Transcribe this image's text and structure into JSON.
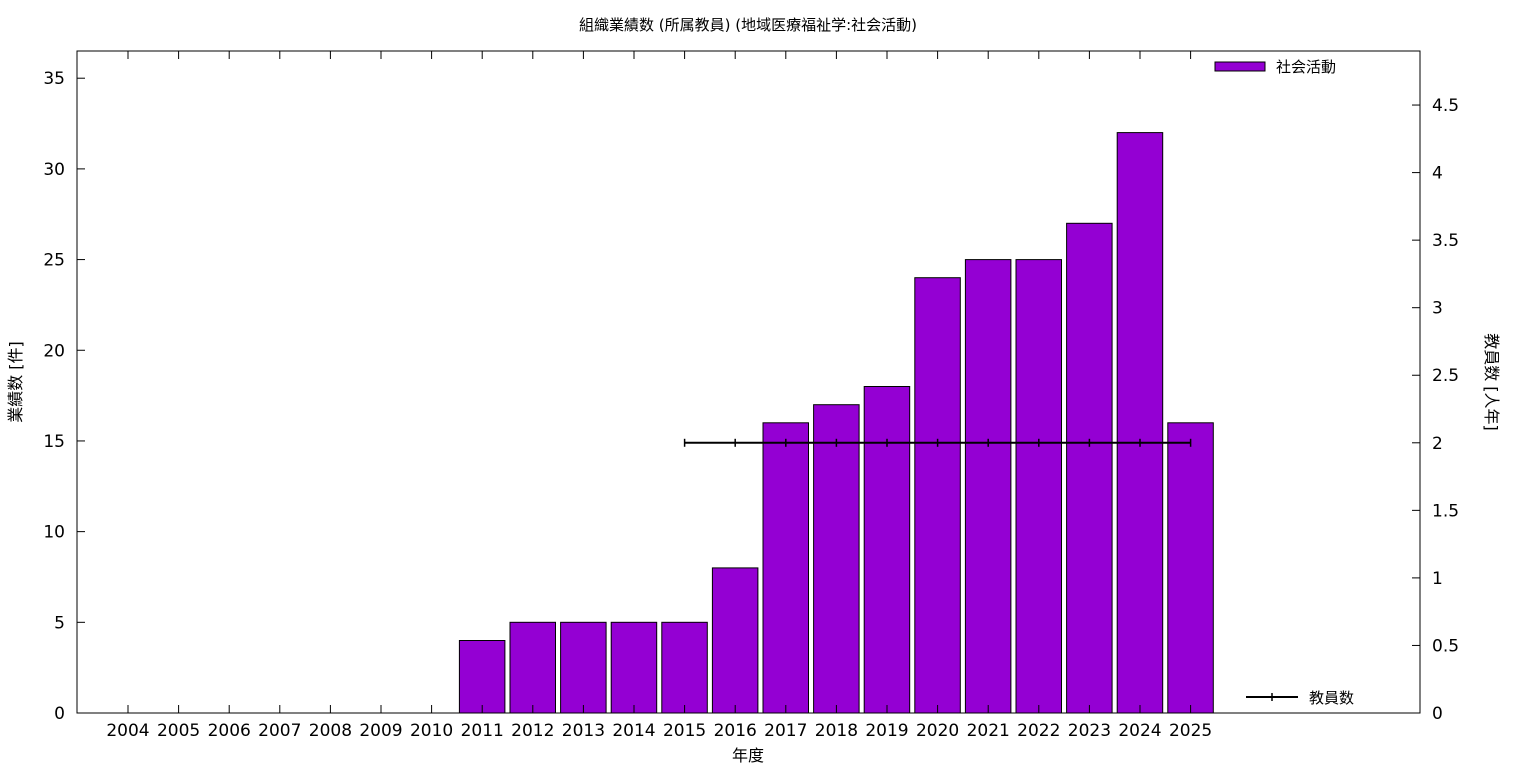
{
  "chart_data": {
    "type": "bar",
    "title": "組織業績数 (所属教員) (地域医療福祉学:社会活動)",
    "xlabel": "年度",
    "ylabel": "業績数 [件]",
    "y2label": "教員数 [人年]",
    "categories": [
      "2004",
      "2005",
      "2006",
      "2007",
      "2008",
      "2009",
      "2010",
      "2011",
      "2012",
      "2013",
      "2014",
      "2015",
      "2016",
      "2017",
      "2018",
      "2019",
      "2020",
      "2021",
      "2022",
      "2023",
      "2024",
      "2025"
    ],
    "series": [
      {
        "name": "社会活動",
        "type": "bar",
        "axis": "left",
        "color": "#9400d3",
        "values": [
          0,
          0,
          0,
          0,
          0,
          0,
          0,
          4,
          5,
          5,
          5,
          5,
          8,
          16,
          17,
          18,
          24,
          25,
          25,
          27,
          32,
          16
        ]
      },
      {
        "name": "教員数",
        "type": "line",
        "axis": "right",
        "color": "#000000",
        "values": [
          null,
          null,
          null,
          null,
          null,
          null,
          null,
          null,
          null,
          null,
          null,
          2,
          2,
          2,
          2,
          2,
          2,
          2,
          2,
          2,
          2,
          2
        ]
      }
    ],
    "ylim": [
      0,
      36.5
    ],
    "y2lim": [
      0,
      4.9
    ],
    "yticks": [
      "0",
      "5",
      "10",
      "15",
      "20",
      "25",
      "30",
      "35"
    ],
    "y2ticks": [
      "0",
      "0.5",
      "1",
      "1.5",
      "2",
      "2.5",
      "3",
      "3.5",
      "4",
      "4.5"
    ],
    "legend": [
      {
        "label": "社会活動",
        "position": "top-right"
      },
      {
        "label": "教員数",
        "position": "bottom-right"
      }
    ],
    "grid": false
  }
}
